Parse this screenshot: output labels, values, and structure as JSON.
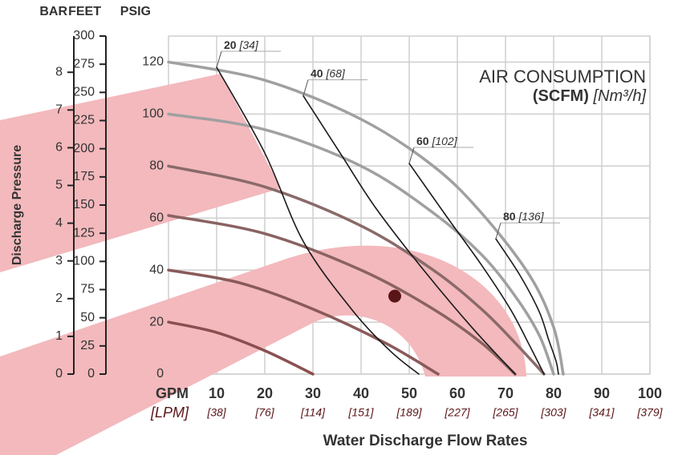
{
  "chart_data": {
    "type": "line",
    "title": "AIR CONSUMPTION",
    "title_unit": "(SCFM)",
    "title_unit_metric": "[Nm³/h]",
    "ylabel": "Discharge Pressure",
    "xlabel": "Water Discharge Flow Rates",
    "x_unit": "GPM",
    "x_unit_metric": "[LPM]",
    "xlim": [
      0,
      100
    ],
    "xticks": [
      10,
      20,
      30,
      40,
      50,
      60,
      70,
      80,
      90,
      100
    ],
    "xticks_metric": [
      "[38]",
      "[76]",
      "[114]",
      "[151]",
      "[189]",
      "[227]",
      "[265]",
      "[303]",
      "[341]",
      "[379]"
    ],
    "y_axes": [
      {
        "label": "BAR",
        "lim": [
          0,
          8.96
        ],
        "ticks": [
          0,
          1,
          2,
          3,
          4,
          5,
          6,
          7,
          8
        ]
      },
      {
        "label": "FEET",
        "lim": [
          0,
          300
        ],
        "ticks": [
          0,
          25,
          50,
          75,
          100,
          125,
          150,
          175,
          200,
          225,
          250,
          275,
          300
        ]
      },
      {
        "label": "PSIG",
        "lim": [
          0,
          130
        ],
        "ticks": [
          0,
          20,
          40,
          60,
          80,
          100,
          120
        ]
      }
    ],
    "grid": true,
    "pressure_curves": [
      {
        "color": "#a0a0a0",
        "x": [
          0,
          20,
          40,
          55,
          65,
          75,
          80,
          82
        ],
        "values": [
          120,
          113,
          98,
          80,
          62,
          38,
          18,
          0
        ]
      },
      {
        "color": "#a0a0a0",
        "x": [
          0,
          20,
          40,
          55,
          65,
          72,
          77,
          80
        ],
        "values": [
          100,
          94,
          80,
          62,
          46,
          30,
          15,
          0
        ]
      },
      {
        "color": "#8a6a6a",
        "x": [
          0,
          20,
          40,
          55,
          65,
          72,
          78
        ],
        "values": [
          80,
          72,
          57,
          40,
          25,
          12,
          0
        ]
      },
      {
        "color": "#8a6262",
        "x": [
          0,
          20,
          40,
          55,
          65,
          72
        ],
        "values": [
          61,
          54,
          40,
          25,
          12,
          0
        ]
      },
      {
        "color": "#8a5a5a",
        "x": [
          0,
          15,
          30,
          45,
          56
        ],
        "values": [
          40,
          35,
          25,
          12,
          0
        ]
      },
      {
        "color": "#8a5050",
        "x": [
          0,
          10,
          20,
          30
        ],
        "values": [
          20,
          16,
          9,
          0
        ]
      }
    ],
    "air_curves": [
      {
        "name": "20",
        "metric": "[34]",
        "color": "#1a1a1a",
        "x": [
          10,
          20,
          28,
          38,
          46,
          52
        ],
        "values": [
          118,
          85,
          51,
          25,
          9,
          0
        ]
      },
      {
        "name": "40",
        "metric": "[68]",
        "color": "#1a1a1a",
        "x": [
          28,
          36,
          43,
          53,
          63,
          72
        ],
        "values": [
          107,
          84,
          64,
          40,
          18,
          0
        ]
      },
      {
        "name": "60",
        "metric": "[102]",
        "color": "#1a1a1a",
        "x": [
          50,
          58,
          65,
          71,
          75,
          78
        ],
        "values": [
          81,
          60,
          42,
          25,
          11,
          0
        ]
      },
      {
        "name": "80",
        "metric": "[136]",
        "color": "#1a1a1a",
        "x": [
          68,
          73,
          77,
          79,
          80.5,
          81
        ],
        "values": [
          52,
          38,
          24,
          13,
          5,
          0
        ]
      }
    ],
    "marker": {
      "x": 47,
      "y": 30,
      "color": "#5a1518"
    }
  }
}
